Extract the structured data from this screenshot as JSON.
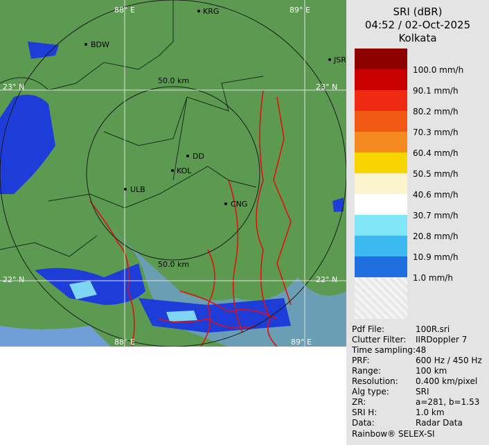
{
  "header": {
    "product": "SRI (dBR)",
    "time": "04:52 / 02-Oct-2025",
    "site": "Kolkata"
  },
  "legend": [
    {
      "label": "100.0 mm/h",
      "color": "#8c0000"
    },
    {
      "label": "90.1 mm/h",
      "color": "#c80000"
    },
    {
      "label": "80.2 mm/h",
      "color": "#ee2a10"
    },
    {
      "label": "70.3 mm/h",
      "color": "#f05814"
    },
    {
      "label": "60.4 mm/h",
      "color": "#f58a20"
    },
    {
      "label": "50.5 mm/h",
      "color": "#f8d400"
    },
    {
      "label": "40.6 mm/h",
      "color": "#fbf4cc"
    },
    {
      "label": "30.7 mm/h",
      "color": "#ffffff"
    },
    {
      "label": "20.8 mm/h",
      "color": "#80e6f8"
    },
    {
      "label": "10.9 mm/h",
      "color": "#3cbaf0"
    },
    {
      "label": "1.0 mm/h",
      "color": "#1f6ee0"
    }
  ],
  "legend_bottom_color": "#0000c0",
  "info": [
    [
      "Pdf File:",
      "100R.sri"
    ],
    [
      "Clutter Filter:",
      "IIRDoppler 7"
    ],
    [
      "Time sampling:",
      "48"
    ],
    [
      "PRF:",
      "600 Hz / 450 Hz"
    ],
    [
      "Range:",
      "100 km"
    ],
    [
      "Resolution:",
      "0.400 km/pixel"
    ],
    [
      "Alg type:",
      "SRI"
    ],
    [
      "ZR:",
      "a=281, b=1.53"
    ],
    [
      "SRI H:",
      "1.0 km"
    ],
    [
      "Data:",
      "Radar Data"
    ]
  ],
  "footer": "Rainbow® SELEX-SI",
  "map": {
    "grid_labels": [
      "88° E",
      "89° E",
      "23° N",
      "23° N",
      "22° N",
      "22° N",
      "88° E",
      "89° E"
    ],
    "ring_labels": [
      "50.0 km",
      "50.0 km"
    ],
    "cities": [
      "BDW",
      "KRG",
      "JSR",
      "DD",
      "KOL",
      "ULB",
      "CNG"
    ]
  }
}
